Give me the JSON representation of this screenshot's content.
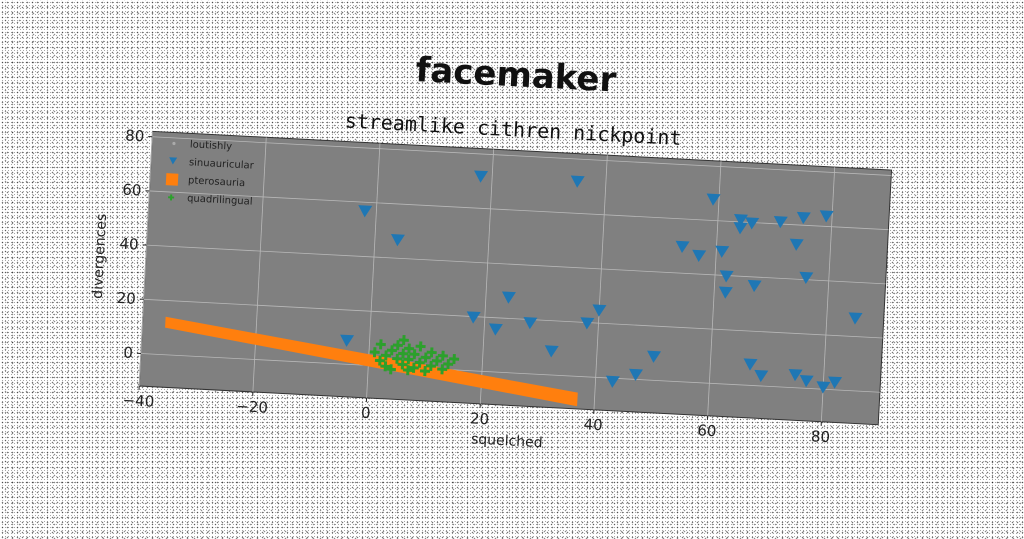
{
  "title": "facemaker",
  "subtitle": "streamlike cithren nickpoint",
  "colors": {
    "background": "#ffffff",
    "axes_face": "#808080",
    "grid": "#b8b8b8",
    "sinuauricular": "#1f77b4",
    "pterosauria": "#ff7f0e",
    "quadrilingual": "#2ca02c"
  },
  "chart_data": {
    "type": "scatter",
    "title": "facemaker",
    "subtitle": "streamlike cithren nickpoint",
    "xlabel": "squelched",
    "ylabel": "divergences",
    "xlim": [
      -40,
      90
    ],
    "ylim": [
      -12,
      82
    ],
    "xticks": [
      -40,
      -20,
      0,
      20,
      40,
      60,
      80
    ],
    "yticks": [
      0,
      20,
      40,
      60,
      80
    ],
    "grid": true,
    "legend": {
      "position": "top-left",
      "entries": [
        "loutishly",
        "sinuauricular",
        "pterosauria",
        "quadrilingual"
      ]
    },
    "series": [
      {
        "name": "loutishly",
        "marker": "dot",
        "color": "#aaaaaa",
        "points": []
      },
      {
        "name": "sinuauricular",
        "marker": "triangle-down",
        "color": "#1f77b4",
        "points": [
          [
            -2,
            57
          ],
          [
            4,
            47
          ],
          [
            -4,
            9
          ],
          [
            18,
            72
          ],
          [
            35,
            72
          ],
          [
            18,
            20
          ],
          [
            22,
            16
          ],
          [
            24,
            28
          ],
          [
            28,
            19
          ],
          [
            32,
            9
          ],
          [
            38,
            20
          ],
          [
            40,
            25
          ],
          [
            43,
            -1
          ],
          [
            47,
            2
          ],
          [
            50,
            9
          ],
          [
            54,
            50
          ],
          [
            57,
            47
          ],
          [
            59,
            68
          ],
          [
            61,
            49
          ],
          [
            62,
            40
          ],
          [
            62,
            34
          ],
          [
            64,
            61
          ],
          [
            64,
            58
          ],
          [
            66,
            60
          ],
          [
            67,
            8
          ],
          [
            67,
            37
          ],
          [
            69,
            4
          ],
          [
            71,
            61
          ],
          [
            74,
            53
          ],
          [
            75,
            63
          ],
          [
            75,
            5
          ],
          [
            76,
            41
          ],
          [
            77,
            3
          ],
          [
            79,
            64
          ],
          [
            80,
            1
          ],
          [
            82,
            3
          ],
          [
            85,
            27
          ]
        ]
      },
      {
        "name": "pterosauria",
        "marker": "square-band",
        "color": "#ff7f0e",
        "band": {
          "x": [
            -36,
            37
          ],
          "y_start": [
            10,
            14
          ],
          "y_end": [
            -11,
            -6
          ]
        }
      },
      {
        "name": "quadrilingual",
        "marker": "plus",
        "color": "#2ca02c",
        "points": [
          [
            1,
            5
          ],
          [
            2,
            2
          ],
          [
            2,
            8
          ],
          [
            3,
            0
          ],
          [
            3,
            4
          ],
          [
            4,
            6
          ],
          [
            4,
            -1
          ],
          [
            5,
            3
          ],
          [
            5,
            8
          ],
          [
            6,
            1
          ],
          [
            6,
            5
          ],
          [
            6,
            10
          ],
          [
            7,
            -1
          ],
          [
            7,
            3
          ],
          [
            7,
            7
          ],
          [
            8,
            0
          ],
          [
            8,
            5
          ],
          [
            9,
            2
          ],
          [
            9,
            8
          ],
          [
            10,
            -1
          ],
          [
            10,
            4
          ],
          [
            11,
            1
          ],
          [
            11,
            6
          ],
          [
            12,
            3
          ],
          [
            13,
            0
          ],
          [
            13,
            5
          ],
          [
            14,
            2
          ],
          [
            15,
            4
          ]
        ]
      }
    ]
  }
}
